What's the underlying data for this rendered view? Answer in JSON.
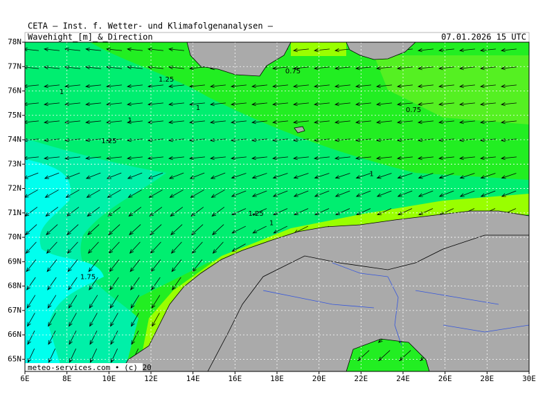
{
  "map": {
    "title": "CETA — Inst. f. Wetter- und Klimafolgenanalysen —",
    "subtitle": "Wavehight_[m]_&_Direction",
    "timestamp": "07.01.2026 15 UTC",
    "credit": "meteo-services.com • (c) 20",
    "lonlim": [
      6,
      30
    ],
    "latlim": [
      64.5,
      78
    ],
    "lon_ticks": [
      {
        "value": 6,
        "label": "6E"
      },
      {
        "value": 8,
        "label": "8E"
      },
      {
        "value": 10,
        "label": "10E"
      },
      {
        "value": 12,
        "label": "12E"
      },
      {
        "value": 14,
        "label": "14E"
      },
      {
        "value": 16,
        "label": "16E"
      },
      {
        "value": 18,
        "label": "18E"
      },
      {
        "value": 20,
        "label": "20E"
      },
      {
        "value": 22,
        "label": "22E"
      },
      {
        "value": 24,
        "label": "24E"
      },
      {
        "value": 26,
        "label": "26E"
      },
      {
        "value": 28,
        "label": "28E"
      },
      {
        "value": 30,
        "label": "30E"
      }
    ],
    "lat_ticks": [
      {
        "value": 65,
        "label": "65N"
      },
      {
        "value": 66,
        "label": "66N"
      },
      {
        "value": 67,
        "label": "67N"
      },
      {
        "value": 68,
        "label": "68N"
      },
      {
        "value": 69,
        "label": "69N"
      },
      {
        "value": 70,
        "label": "70N"
      },
      {
        "value": 71,
        "label": "71N"
      },
      {
        "value": 72,
        "label": "72N"
      },
      {
        "value": 73,
        "label": "73N"
      },
      {
        "value": 74,
        "label": "74N"
      },
      {
        "value": 75,
        "label": "75N"
      },
      {
        "value": 76,
        "label": "76N"
      },
      {
        "value": 77,
        "label": "77N"
      },
      {
        "value": 78,
        "label": "78N"
      }
    ],
    "contour_labels": [
      {
        "value": 0.75,
        "lon": 18.76,
        "lat": 76.81
      },
      {
        "value": 1.25,
        "lon": 12.73,
        "lat": 76.47
      },
      {
        "value": 1,
        "lon": 7.75,
        "lat": 75.96
      },
      {
        "value": 0.75,
        "lon": 24.5,
        "lat": 75.22
      },
      {
        "value": 1,
        "lon": 14.24,
        "lat": 75.31
      },
      {
        "value": 1,
        "lon": 11.0,
        "lat": 74.8
      },
      {
        "value": 1.25,
        "lon": 10.0,
        "lat": 73.95
      },
      {
        "value": 1,
        "lon": 22.5,
        "lat": 72.6
      },
      {
        "value": 1.25,
        "lon": 17.0,
        "lat": 70.97
      },
      {
        "value": 1,
        "lon": 17.74,
        "lat": 70.58
      },
      {
        "value": 1.75,
        "lon": 9.0,
        "lat": 68.37
      }
    ]
  }
}
